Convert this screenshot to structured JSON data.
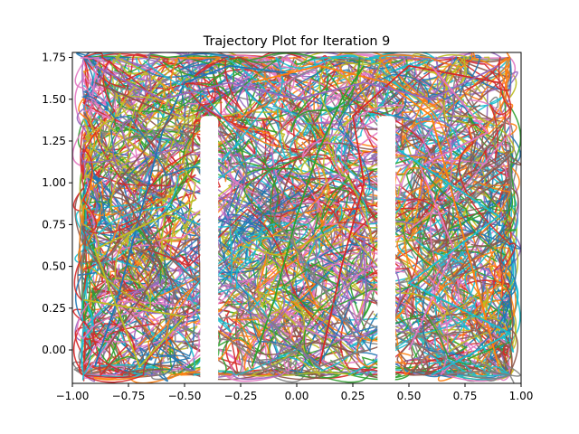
{
  "chart_data": {
    "type": "line",
    "title": "Trajectory Plot for Iteration 9",
    "xlabel": "",
    "ylabel": "",
    "xlim": [
      -1.0,
      1.0
    ],
    "ylim": [
      -0.2,
      1.78
    ],
    "x_ticks": [
      -1.0,
      -0.75,
      -0.5,
      -0.25,
      0.0,
      0.25,
      0.5,
      0.75,
      1.0
    ],
    "x_tick_labels": [
      "−1.00",
      "−0.75",
      "−0.50",
      "−0.25",
      "0.00",
      "0.25",
      "0.50",
      "0.75",
      "1.00"
    ],
    "y_ticks": [
      0.0,
      0.25,
      0.5,
      0.75,
      1.0,
      1.25,
      1.5,
      1.75
    ],
    "y_tick_labels": [
      "0.00",
      "0.25",
      "0.50",
      "0.75",
      "1.00",
      "1.25",
      "1.50",
      "1.75"
    ],
    "grid": false,
    "legend": "none",
    "series_colors": [
      "#1f77b4",
      "#ff7f0e",
      "#2ca02c",
      "#d62728",
      "#9467bd",
      "#8c564b",
      "#e377c2",
      "#7f7f7f",
      "#bcbd22",
      "#17becf"
    ],
    "maze": {
      "outer_x": [
        -0.95,
        0.95
      ],
      "outer_y": [
        -0.15,
        1.75
      ],
      "walls": [
        {
          "x": [
            -0.43,
            -0.35
          ],
          "y": [
            -0.2,
            1.4
          ]
        },
        {
          "x": [
            0.36,
            0.44
          ],
          "y": [
            -0.2,
            1.4
          ]
        }
      ]
    },
    "series": [
      {
        "values": [
          [
            -0.9,
            -0.1
          ],
          [
            -0.8,
            0.3
          ],
          [
            -0.7,
            0.8
          ],
          [
            -0.6,
            1.3
          ],
          [
            -0.5,
            1.6
          ],
          [
            -0.3,
            1.7
          ],
          [
            0.0,
            1.65
          ]
        ]
      },
      {
        "values": [
          [
            0.9,
            -0.1
          ],
          [
            0.8,
            0.4
          ],
          [
            0.7,
            0.9
          ],
          [
            0.6,
            1.4
          ],
          [
            0.4,
            1.6
          ],
          [
            0.1,
            1.7
          ],
          [
            -0.2,
            1.6
          ]
        ]
      },
      {
        "values": [
          [
            -0.2,
            -0.1
          ],
          [
            -0.1,
            0.3
          ],
          [
            0.0,
            0.8
          ],
          [
            0.1,
            1.2
          ],
          [
            0.2,
            1.5
          ],
          [
            0.3,
            1.7
          ]
        ]
      },
      {
        "values": [
          [
            0.1,
            -0.1
          ],
          [
            0.2,
            0.5
          ],
          [
            0.3,
            1.0
          ],
          [
            0.25,
            1.4
          ],
          [
            0.5,
            1.7
          ],
          [
            0.9,
            1.6
          ]
        ]
      },
      {
        "values": [
          [
            -0.9,
            1.7
          ],
          [
            -0.6,
            1.5
          ],
          [
            -0.3,
            1.6
          ],
          [
            0.0,
            1.5
          ],
          [
            0.3,
            1.6
          ],
          [
            0.6,
            1.5
          ],
          [
            0.9,
            1.7
          ]
        ]
      },
      {
        "values": [
          [
            -0.85,
            0.0
          ],
          [
            -0.6,
            0.5
          ],
          [
            -0.8,
            1.0
          ],
          [
            -0.55,
            1.4
          ],
          [
            -0.9,
            1.6
          ]
        ]
      },
      {
        "values": [
          [
            0.5,
            0.0
          ],
          [
            0.7,
            0.6
          ],
          [
            0.55,
            1.1
          ],
          [
            0.85,
            1.3
          ],
          [
            0.6,
            1.7
          ]
        ]
      },
      {
        "values": [
          [
            -0.3,
            1.2
          ],
          [
            0.0,
            0.6
          ],
          [
            0.3,
            0.0
          ],
          [
            0.1,
            -0.1
          ],
          [
            -0.3,
            0.4
          ]
        ]
      },
      {
        "values": [
          [
            -0.95,
            0.3
          ],
          [
            -0.5,
            0.2
          ],
          [
            -0.7,
            -0.1
          ],
          [
            -0.9,
            0.6
          ],
          [
            -0.45,
            0.9
          ]
        ]
      },
      {
        "values": [
          [
            0.45,
            1.2
          ],
          [
            0.9,
            0.8
          ],
          [
            0.5,
            0.4
          ],
          [
            0.95,
            0.1
          ],
          [
            0.6,
            -0.15
          ]
        ]
      }
    ]
  }
}
